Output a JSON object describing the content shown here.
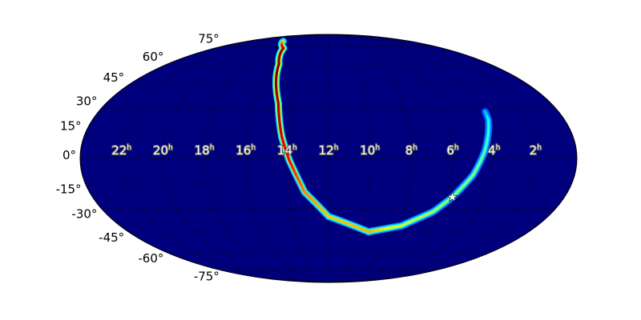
{
  "chart_data": {
    "type": "heatmap",
    "projection": "mollweide",
    "colormap": "jet",
    "background_color": "#00007f",
    "grid": true,
    "dec_tick_labels": [
      "75°",
      "60°",
      "45°",
      "30°",
      "15°",
      "0°",
      "-15°",
      "-30°",
      "-45°",
      "-60°",
      "-75°"
    ],
    "dec_ticks": [
      75,
      60,
      45,
      30,
      15,
      0,
      -15,
      -30,
      -45,
      -60,
      -75
    ],
    "ra_tick_labels": [
      {
        "value": "22",
        "unit": "h"
      },
      {
        "value": "20",
        "unit": "h"
      },
      {
        "value": "18",
        "unit": "h"
      },
      {
        "value": "16",
        "unit": "h"
      },
      {
        "value": "14",
        "unit": "h"
      },
      {
        "value": "12",
        "unit": "h"
      },
      {
        "value": "10",
        "unit": "h"
      },
      {
        "value": "8",
        "unit": "h"
      },
      {
        "value": "6",
        "unit": "h"
      },
      {
        "value": "4",
        "unit": "h"
      },
      {
        "value": "2",
        "unit": "h"
      }
    ],
    "ra_ticks_hours": [
      22,
      20,
      18,
      16,
      14,
      12,
      10,
      8,
      6,
      4,
      2
    ],
    "probability_arc": [
      {
        "ra_h": 18.7,
        "dec": 80,
        "intensity": 0.6
      },
      {
        "ra_h": 16.75,
        "dec": 73,
        "intensity": 0.95
      },
      {
        "ra_h": 15.7,
        "dec": 60,
        "intensity": 1.0
      },
      {
        "ra_h": 14.7,
        "dec": 33,
        "intensity": 0.95
      },
      {
        "ra_h": 14.3,
        "dec": 13,
        "intensity": 0.9
      },
      {
        "ra_h": 13.9,
        "dec": -1,
        "intensity": 0.85
      },
      {
        "ra_h": 13.2,
        "dec": -20,
        "intensity": 0.7
      },
      {
        "ra_h": 12.0,
        "dec": -35,
        "intensity": 0.62
      },
      {
        "ra_h": 9.6,
        "dec": -45,
        "intensity": 0.65
      },
      {
        "ra_h": 7.8,
        "dec": -41,
        "intensity": 0.5
      },
      {
        "ra_h": 6.4,
        "dec": -32,
        "intensity": 0.45
      },
      {
        "ra_h": 5.7,
        "dec": -23,
        "intensity": 0.42
      },
      {
        "ra_h": 4.96,
        "dec": -10,
        "intensity": 0.4
      },
      {
        "ra_h": 4.45,
        "dec": 4,
        "intensity": 0.35
      },
      {
        "ra_h": 3.87,
        "dec": 23,
        "intensity": 0.28
      },
      {
        "ra_h": 3.83,
        "dec": 28,
        "intensity": 0.18
      }
    ],
    "marker": {
      "symbol": "star",
      "ra_h": 5.7,
      "dec": -23,
      "color": "#ffffff"
    }
  }
}
